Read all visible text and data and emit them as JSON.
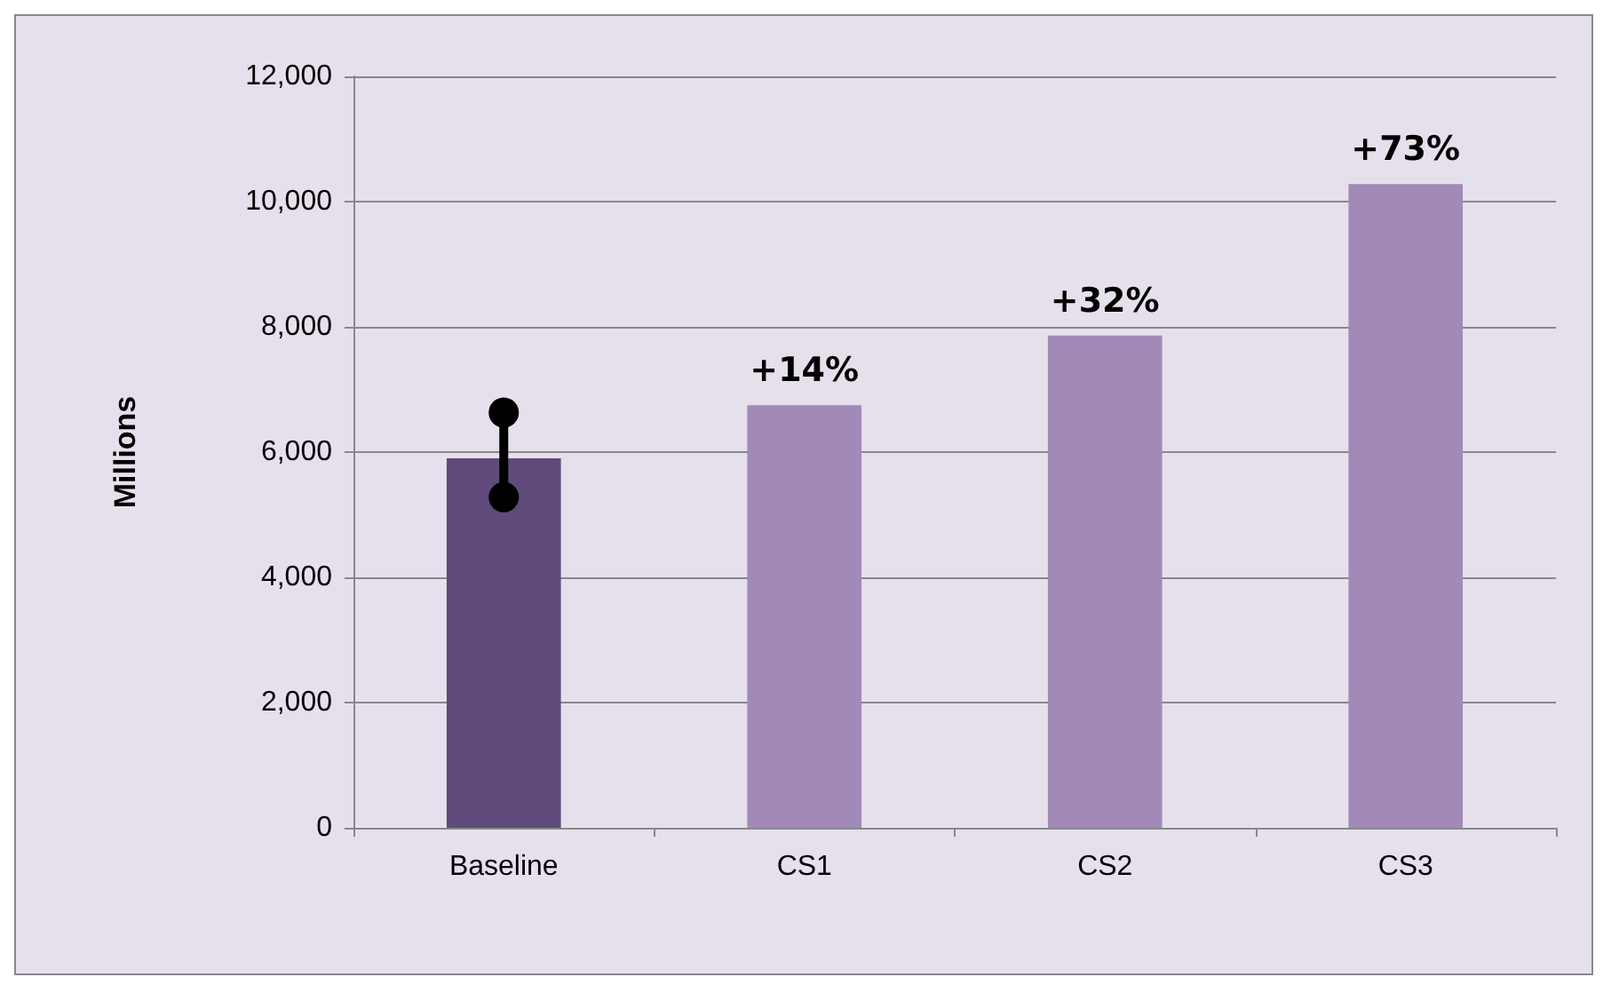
{
  "chart_data": {
    "type": "bar",
    "ylabel": "Millions",
    "categories": [
      "Baseline",
      "CS1",
      "CS2",
      "CS3"
    ],
    "series": [
      {
        "values": [
          5900,
          6750,
          7860,
          10280
        ],
        "colors": [
          "#604a7b",
          "#a18ab8",
          "#a18ab8",
          "#a18ab8"
        ]
      },
      {
        "type": "line",
        "x": [
          "Baseline",
          "Baseline"
        ],
        "values": [
          5280,
          6630
        ],
        "color": "#000000",
        "marker": "circle"
      }
    ],
    "annotations": [
      {
        "text": "+14%",
        "x": "CS1",
        "y": 6750
      },
      {
        "text": "+32%",
        "x": "CS2",
        "y": 7860
      },
      {
        "text": "+73%",
        "x": "CS3",
        "y": 10280
      }
    ],
    "ylim": [
      0,
      12000
    ],
    "yticks": [
      0,
      {
        "value": 2000,
        "label": "2,000"
      },
      {
        "value": 4000,
        "label": "4,000"
      },
      {
        "value": 6000,
        "label": "6,000"
      },
      {
        "value": 8000,
        "label": "8,000"
      },
      {
        "value": 10000,
        "label": "10,000"
      },
      {
        "value": 12000,
        "label": "12,000"
      }
    ],
    "grid": "y"
  }
}
